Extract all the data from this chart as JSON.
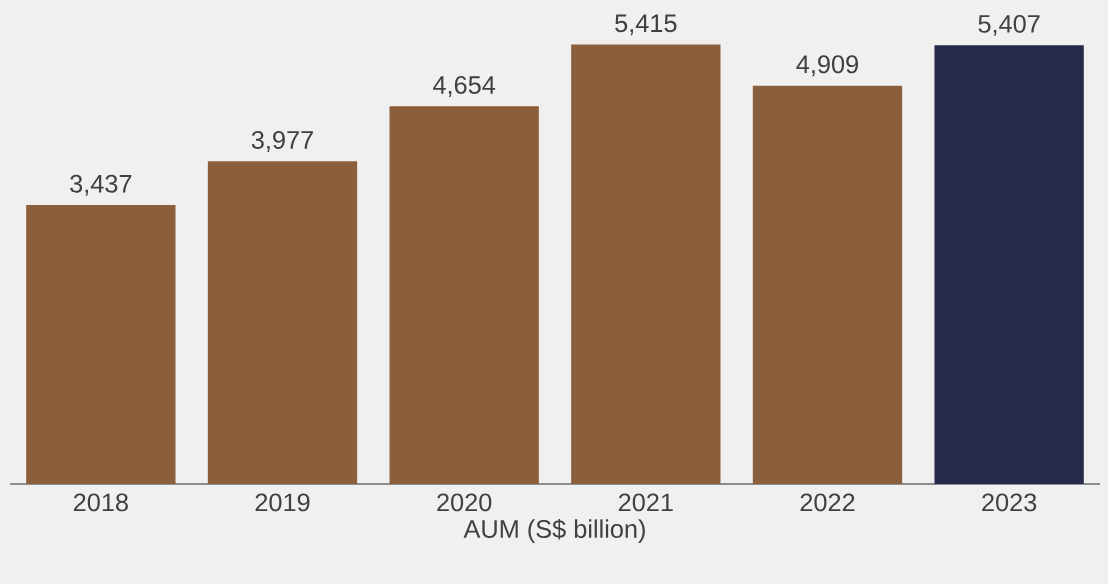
{
  "chart_data": {
    "type": "bar",
    "xlabel": "AUM (S$ billion)",
    "categories": [
      "2018",
      "2019",
      "2020",
      "2021",
      "2022",
      "2023"
    ],
    "values": [
      3437,
      3977,
      4654,
      5415,
      4909,
      5407
    ],
    "value_labels": [
      "3,437",
      "3,977",
      "4,654",
      "5,415",
      "4,909",
      "5,407"
    ],
    "colors": [
      "#8b5e3c",
      "#8b5e3c",
      "#8b5e3c",
      "#8b5e3c",
      "#8b5e3c",
      "#262a4a"
    ]
  }
}
